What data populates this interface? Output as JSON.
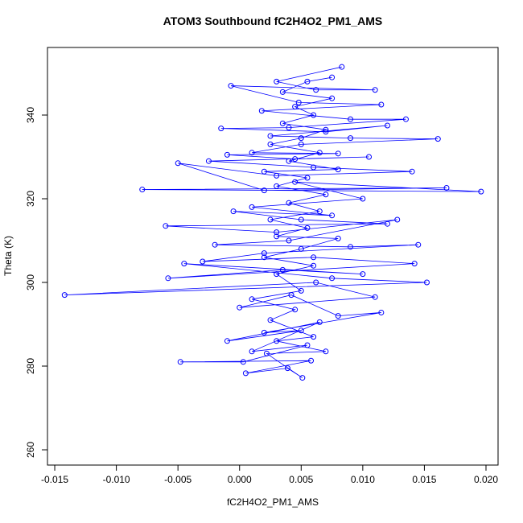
{
  "chart_data": {
    "type": "line",
    "markers": "open-circle",
    "title": "ATOM3 Southbound fC2H4O2_PM1_AMS",
    "x_label": "fC2H4O2_PM1_AMS",
    "y_label": "Theta (K)",
    "xlim": [
      -0.01559,
      0.02098
    ],
    "ylim": [
      256.35,
      356.15
    ],
    "xticks": [
      -0.015,
      {
        "value": -0.01,
        "label": "-0.010"
      },
      -0.005,
      {
        "value": 0,
        "label": "0.000"
      },
      0.005,
      {
        "value": 0.01,
        "label": "0.010"
      },
      0.015,
      {
        "value": 0.02,
        "label": "0.020"
      }
    ],
    "yticks": [
      260,
      280,
      300,
      320,
      340
    ],
    "series": [
      {
        "color": "#0000ff",
        "x": [
          0.0083,
          0.003,
          0.0062,
          0.011,
          -0.0007,
          0.0048,
          0.0115,
          0.0018,
          0.009,
          0.0135,
          0.004,
          -0.0015,
          0.007,
          0.012,
          0.0025,
          0.009,
          0.0161,
          0.005,
          0.001,
          0.008,
          -0.001,
          0.0045,
          0.0105,
          -0.0025,
          0.006,
          0.014,
          0.003,
          -0.005,
          0.002,
          0.0168,
          -0.0079,
          0.0196,
          0.0045,
          0.01,
          0.001,
          0.0075,
          -0.0005,
          0.005,
          0.012,
          -0.006,
          0.003,
          0.0128,
          0.004,
          -0.002,
          0.009,
          0.0145,
          0.002,
          -0.003,
          0.006,
          0.0142,
          -0.0058,
          0.0035,
          0.01,
          -0.0045,
          0.0075,
          0.0152,
          -0.0142,
          0.0062,
          0.011,
          0.0,
          0.0042,
          0.008,
          0.0115,
          0.002,
          0.005,
          -0.001,
          0.0065,
          0.001,
          0.0055,
          0.0003,
          -0.0048,
          0.0058,
          0.0005,
          0.0039,
          0.0051,
          0.0022,
          0.007,
          0.003,
          0.006,
          0.0025,
          0.0045,
          0.001,
          0.005,
          0.003,
          0.006,
          0.002,
          0.005,
          0.008,
          0.003,
          0.0055,
          0.0025,
          0.0065,
          0.004,
          0.007,
          0.003,
          0.0055,
          0.002,
          0.008,
          0.004,
          0.0065,
          0.0025,
          0.005,
          0.007,
          0.0035,
          0.006,
          0.0045,
          0.0075,
          0.0035,
          0.0055,
          0.0075
        ],
        "values": [
          351.5,
          348,
          346,
          346,
          347,
          343,
          342.5,
          341,
          339,
          339,
          337,
          336.8,
          336,
          337.5,
          335,
          334.5,
          334.3,
          333,
          331,
          330.8,
          330.5,
          329.5,
          330,
          329,
          327.5,
          326.5,
          325.5,
          328.5,
          322,
          322.6,
          322.2,
          321.7,
          324,
          320,
          318,
          316,
          317,
          315,
          314,
          313.5,
          312,
          315,
          310,
          309,
          308.5,
          309,
          307,
          305,
          306,
          304.5,
          301,
          303,
          302,
          304.5,
          301,
          300,
          297,
          300,
          296.5,
          294,
          297,
          292,
          292.8,
          288,
          288.5,
          286,
          290.5,
          283.5,
          285,
          281,
          281,
          281.3,
          278.3,
          279.5,
          277.2,
          283,
          283.5,
          286,
          287,
          291,
          293.5,
          296,
          298,
          302,
          304,
          306,
          308,
          310.5,
          311,
          313,
          315,
          317,
          319,
          321,
          323,
          325,
          326.5,
          327,
          329,
          331,
          333,
          334.5,
          336.5,
          338,
          340,
          342,
          344,
          345.5,
          348,
          349
        ]
      }
    ]
  }
}
